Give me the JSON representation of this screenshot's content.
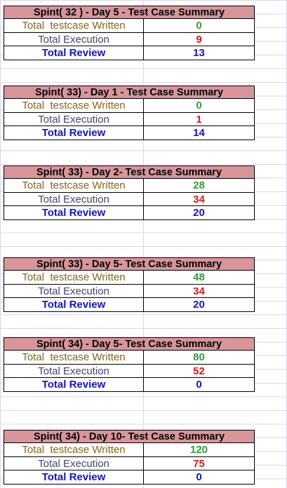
{
  "blocks": [
    {
      "title": "Spint( 32 ) - Day 5 - Test Case Summary",
      "written_label": "Total  testcase Written",
      "written": "0",
      "exec_label": "Total Execution",
      "exec": "9",
      "review_label": "Total Review",
      "review": "13"
    },
    {
      "title": "Spint( 33) - Day 1 - Test Case Summary",
      "written_label": "Total  testcase Written",
      "written": "0",
      "exec_label": "Total Execution",
      "exec": "1",
      "review_label": "Total Review",
      "review": "14"
    },
    {
      "title": "Spint( 33) - Day 2- Test Case Summary",
      "written_label": "Total  testcase Written",
      "written": "28",
      "exec_label": "Total Execution",
      "exec": "34",
      "review_label": "Total Review",
      "review": "20"
    },
    {
      "title": "Spint( 33) - Day 5- Test Case Summary",
      "written_label": "Total  testcase Written",
      "written": "48",
      "exec_label": "Total Execution",
      "exec": "34",
      "review_label": "Total Review",
      "review": "20"
    },
    {
      "title": "Spint( 34) - Day 5- Test Case Summary",
      "written_label": "Total  testcase Written",
      "written": "80",
      "exec_label": "Total Execution",
      "exec": "52",
      "review_label": "Total Review",
      "review": "0"
    },
    {
      "title": "Spint( 34) - Day 10- Test Case Summary",
      "written_label": "Total  testcase Written",
      "written": "120",
      "exec_label": "Total Execution",
      "exec": "75",
      "review_label": "Total Review",
      "review": "0"
    }
  ]
}
